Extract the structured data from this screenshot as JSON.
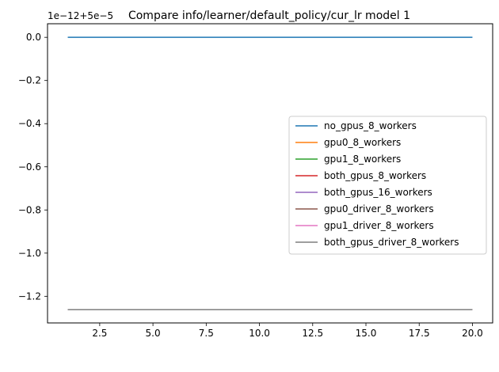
{
  "chart_data": {
    "type": "line",
    "title": "Compare info/learner/default_policy/cur_lr model 1",
    "offset_label": "1e−12+5e−5",
    "xlabel": "",
    "ylabel": "",
    "xlim": [
      0.05,
      20.95
    ],
    "ylim": [
      -1.3235,
      0.063
    ],
    "x_ticks": [
      2.5,
      5.0,
      7.5,
      10.0,
      12.5,
      15.0,
      17.5,
      20.0
    ],
    "x_tick_labels": [
      "2.5",
      "5.0",
      "7.5",
      "10.0",
      "12.5",
      "15.0",
      "17.5",
      "20.0"
    ],
    "y_ticks": [
      0.0,
      -0.2,
      -0.4,
      -0.6,
      -0.8,
      -1.0,
      -1.2
    ],
    "y_tick_labels": [
      "0.0",
      "−0.2",
      "−0.4",
      "−0.6",
      "−0.8",
      "−1.0",
      "−1.2"
    ],
    "grid": false,
    "legend_position": "center-right",
    "series": [
      {
        "name": "no_gpus_8_workers",
        "color": "#1f77b4",
        "x": [
          1,
          20
        ],
        "y": [
          0.0,
          0.0
        ]
      },
      {
        "name": "gpu0_8_workers",
        "color": "#ff7f0e",
        "x": [
          1,
          20
        ],
        "y": [
          -1.262,
          -1.262
        ]
      },
      {
        "name": "gpu1_8_workers",
        "color": "#2ca02c",
        "x": [
          1,
          20
        ],
        "y": [
          -1.262,
          -1.262
        ]
      },
      {
        "name": "both_gpus_8_workers",
        "color": "#d62728",
        "x": [
          1,
          20
        ],
        "y": [
          -1.262,
          -1.262
        ]
      },
      {
        "name": "both_gpus_16_workers",
        "color": "#9467bd",
        "x": [
          1,
          20
        ],
        "y": [
          -1.262,
          -1.262
        ]
      },
      {
        "name": "gpu0_driver_8_workers",
        "color": "#8c564b",
        "x": [
          1,
          20
        ],
        "y": [
          -1.262,
          -1.262
        ]
      },
      {
        "name": "gpu1_driver_8_workers",
        "color": "#e377c2",
        "x": [
          1,
          20
        ],
        "y": [
          -1.262,
          -1.262
        ]
      },
      {
        "name": "both_gpus_driver_8_workers",
        "color": "#7f7f7f",
        "x": [
          1,
          20
        ],
        "y": [
          -1.262,
          -1.262
        ]
      }
    ]
  }
}
